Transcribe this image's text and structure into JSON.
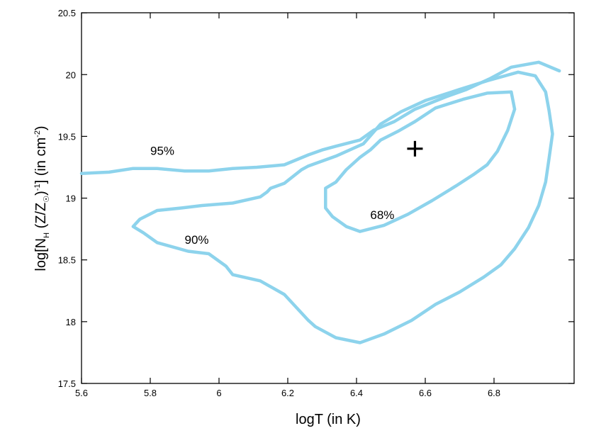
{
  "chart_data": {
    "type": "contour",
    "xlabel": "logT (in K)",
    "ylabel": {
      "base": "log[N",
      "sub_h": "H",
      "mid": " (Z/Z",
      "sub_sun": "☉",
      "close": ")",
      "sup_neg1": "-1",
      "mid2": "] (in cm",
      "sup_neg2": "-2",
      "end": ")"
    },
    "xlim": [
      5.6,
      6.99
    ],
    "ylim": [
      17.5,
      20.5
    ],
    "xticks": [
      5.6,
      5.8,
      6.0,
      6.2,
      6.4,
      6.6,
      6.8
    ],
    "xtick_labels": [
      "5.6",
      "5.8",
      "6",
      "6.2",
      "6.4",
      "6.6",
      "6.8"
    ],
    "yticks": [
      17.5,
      18,
      18.5,
      19,
      19.5,
      20,
      20.5
    ],
    "ytick_labels": [
      "17.5",
      "18",
      "18.5",
      "19",
      "19.5",
      "20",
      "20.5"
    ],
    "line_color": "#8dd3ec",
    "best_fit": {
      "x": 6.57,
      "y": 19.4,
      "marker": "+"
    },
    "contours": [
      {
        "name": "68%",
        "label": "68%",
        "label_at": [
          6.44,
          18.83
        ],
        "points": [
          [
            6.41,
            18.73
          ],
          [
            6.48,
            18.78
          ],
          [
            6.55,
            18.87
          ],
          [
            6.62,
            18.98
          ],
          [
            6.69,
            19.1
          ],
          [
            6.74,
            19.19
          ],
          [
            6.78,
            19.27
          ],
          [
            6.81,
            19.38
          ],
          [
            6.84,
            19.55
          ],
          [
            6.86,
            19.72
          ],
          [
            6.85,
            19.86
          ],
          [
            6.78,
            19.85
          ],
          [
            6.71,
            19.8
          ],
          [
            6.63,
            19.73
          ],
          [
            6.57,
            19.62
          ],
          [
            6.52,
            19.54
          ],
          [
            6.47,
            19.47
          ],
          [
            6.44,
            19.39
          ],
          [
            6.41,
            19.33
          ],
          [
            6.37,
            19.23
          ],
          [
            6.34,
            19.13
          ],
          [
            6.31,
            19.08
          ],
          [
            6.31,
            18.92
          ],
          [
            6.33,
            18.85
          ],
          [
            6.37,
            18.77
          ],
          [
            6.41,
            18.73
          ]
        ],
        "closed": true
      },
      {
        "name": "90%",
        "label": "90%",
        "label_at": [
          5.9,
          18.63
        ],
        "points": [
          [
            6.41,
            17.83
          ],
          [
            6.48,
            17.9
          ],
          [
            6.56,
            18.01
          ],
          [
            6.63,
            18.14
          ],
          [
            6.7,
            18.24
          ],
          [
            6.77,
            18.36
          ],
          [
            6.82,
            18.46
          ],
          [
            6.86,
            18.59
          ],
          [
            6.9,
            18.76
          ],
          [
            6.93,
            18.94
          ],
          [
            6.95,
            19.13
          ],
          [
            6.96,
            19.32
          ],
          [
            6.97,
            19.52
          ],
          [
            6.96,
            19.71
          ],
          [
            6.95,
            19.86
          ],
          [
            6.92,
            19.99
          ],
          [
            6.87,
            20.02
          ],
          [
            6.78,
            19.95
          ],
          [
            6.7,
            19.88
          ],
          [
            6.6,
            19.79
          ],
          [
            6.53,
            19.7
          ],
          [
            6.47,
            19.6
          ],
          [
            6.42,
            19.44
          ],
          [
            6.34,
            19.34
          ],
          [
            6.26,
            19.26
          ],
          [
            6.24,
            19.23
          ],
          [
            6.19,
            19.12
          ],
          [
            6.15,
            19.08
          ],
          [
            6.14,
            19.05
          ],
          [
            6.12,
            19.01
          ],
          [
            6.04,
            18.96
          ],
          [
            5.95,
            18.94
          ],
          [
            5.89,
            18.92
          ],
          [
            5.82,
            18.9
          ],
          [
            5.77,
            18.83
          ],
          [
            5.75,
            18.77
          ],
          [
            5.78,
            18.72
          ],
          [
            5.82,
            18.64
          ],
          [
            5.91,
            18.57
          ],
          [
            5.97,
            18.55
          ],
          [
            6.02,
            18.45
          ],
          [
            6.04,
            18.38
          ],
          [
            6.12,
            18.33
          ],
          [
            6.19,
            18.22
          ],
          [
            6.26,
            18.01
          ],
          [
            6.28,
            17.96
          ],
          [
            6.34,
            17.87
          ],
          [
            6.41,
            17.83
          ]
        ],
        "closed": true
      },
      {
        "name": "95%",
        "label": "95%",
        "label_at": [
          5.8,
          19.35
        ],
        "points": [
          [
            5.6,
            19.2
          ],
          [
            5.68,
            19.21
          ],
          [
            5.75,
            19.24
          ],
          [
            5.82,
            19.24
          ],
          [
            5.9,
            19.22
          ],
          [
            5.97,
            19.22
          ],
          [
            6.04,
            19.24
          ],
          [
            6.11,
            19.25
          ],
          [
            6.19,
            19.27
          ],
          [
            6.26,
            19.35
          ],
          [
            6.3,
            19.39
          ],
          [
            6.34,
            19.42
          ],
          [
            6.41,
            19.47
          ],
          [
            6.45,
            19.55
          ],
          [
            6.51,
            19.62
          ],
          [
            6.57,
            19.72
          ],
          [
            6.66,
            19.82
          ],
          [
            6.72,
            19.88
          ],
          [
            6.79,
            19.97
          ],
          [
            6.85,
            20.06
          ],
          [
            6.93,
            20.1
          ],
          [
            6.99,
            20.03
          ]
        ],
        "closed": false
      }
    ]
  }
}
